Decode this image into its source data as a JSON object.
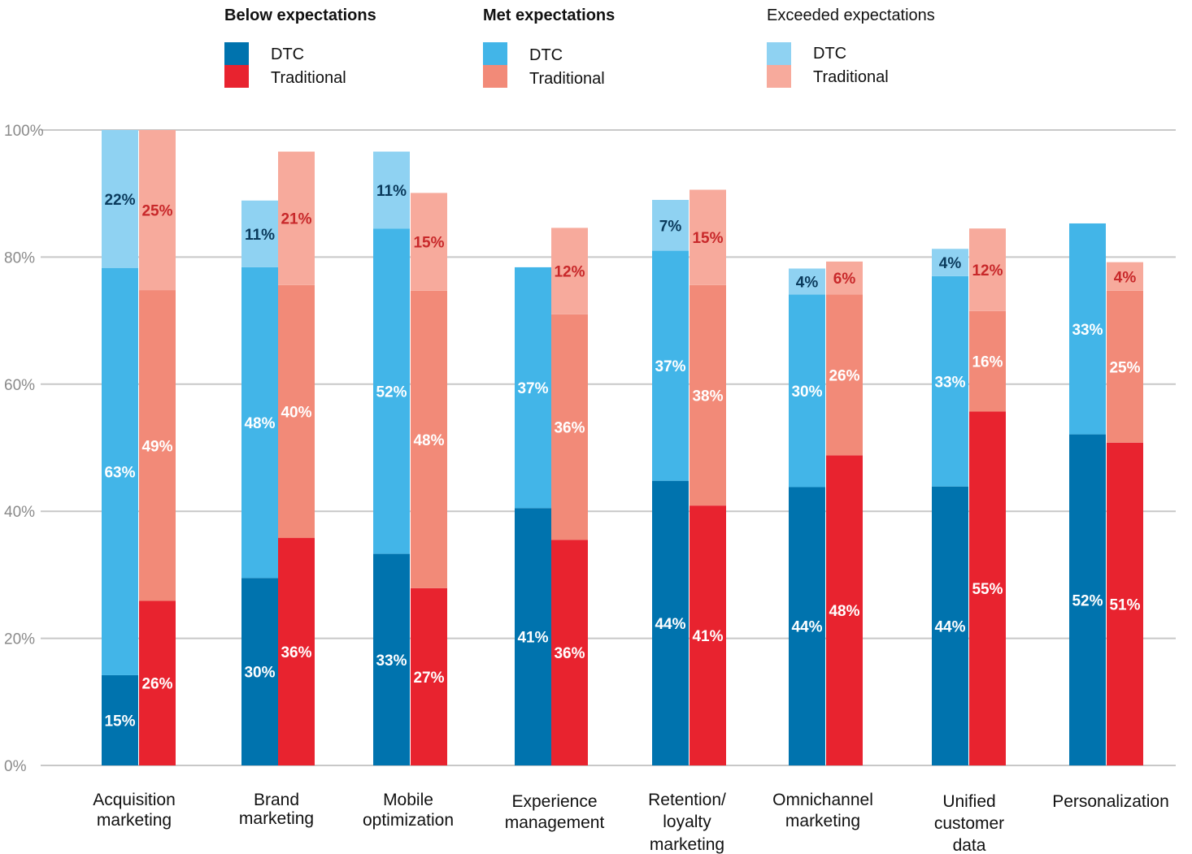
{
  "chart_data": {
    "type": "bar",
    "stacked": true,
    "grouped": true,
    "ylim": [
      0,
      100
    ],
    "yticks": [
      "0%",
      "20%",
      "40%",
      "60%",
      "80%",
      "100%"
    ],
    "ytick_values": [
      0,
      20,
      40,
      60,
      80,
      100
    ],
    "grid": true,
    "legend_position": "top",
    "categories": [
      [
        "Acquisition",
        "marketing"
      ],
      [
        "Brand",
        "marketing"
      ],
      [
        "Mobile",
        "optimization"
      ],
      [
        "Experience",
        "management"
      ],
      [
        "Retention/",
        "loyalty",
        "marketing"
      ],
      [
        "Omnichannel",
        "marketing"
      ],
      [
        "Unified",
        "customer",
        "data"
      ],
      [
        "Personalization"
      ]
    ],
    "legend": [
      {
        "title": "Below expectations",
        "bold": true,
        "items": [
          {
            "name": "DTC",
            "color": "#0073ae"
          },
          {
            "name": "Traditional",
            "color": "#e8232f"
          }
        ]
      },
      {
        "title": "Met expectations",
        "bold": true,
        "items": [
          {
            "name": "DTC",
            "color": "#42b5e8"
          },
          {
            "name": "Traditional",
            "color": "#f28a78"
          }
        ]
      },
      {
        "title": "Exceeded expectations",
        "bold": false,
        "items": [
          {
            "name": "DTC",
            "color": "#8fd2f2"
          },
          {
            "name": "Traditional",
            "color": "#f7aa9c"
          }
        ]
      }
    ],
    "series": [
      {
        "group": "DTC",
        "level": "Below expectations",
        "color": "#0073ae",
        "label_color": "#ffffff",
        "values": [
          15,
          30,
          33,
          41,
          44,
          44,
          44,
          52
        ]
      },
      {
        "group": "DTC",
        "level": "Met expectations",
        "color": "#42b5e8",
        "label_color": "#ffffff",
        "values": [
          63,
          48,
          52,
          37,
          37,
          30,
          33,
          33
        ]
      },
      {
        "group": "DTC",
        "level": "Exceeded expectations",
        "color": "#8fd2f2",
        "label_color": "#0a3a5c",
        "values": [
          22,
          11,
          11,
          null,
          7,
          4,
          4,
          null
        ]
      },
      {
        "group": "Traditional",
        "level": "Below expectations",
        "color": "#e8232f",
        "label_color": "#ffffff",
        "values": [
          26,
          36,
          27,
          36,
          41,
          48,
          55,
          51
        ]
      },
      {
        "group": "Traditional",
        "level": "Met expectations",
        "color": "#f28a78",
        "label_color": "#ffffff",
        "values": [
          49,
          40,
          48,
          36,
          38,
          26,
          16,
          25
        ]
      },
      {
        "group": "Traditional",
        "level": "Exceeded expectations",
        "color": "#f7aa9c",
        "label_color": "#c8282a",
        "values": [
          25,
          21,
          15,
          12,
          15,
          6,
          12,
          4
        ]
      }
    ],
    "segment_tops": {
      "DTC": [
        [
          14.2,
          78.3,
          100
        ],
        [
          29.5,
          78.4,
          88.9
        ],
        [
          33.3,
          84.5,
          96.6
        ],
        [
          40.5,
          78.4,
          null
        ],
        [
          44.8,
          81.0,
          89.0
        ],
        [
          43.8,
          74.1,
          78.2
        ],
        [
          43.9,
          77.0,
          81.3
        ],
        [
          52.1,
          85.3,
          null
        ]
      ],
      "Traditional": [
        [
          25.9,
          74.8,
          100
        ],
        [
          35.8,
          75.6,
          96.6
        ],
        [
          27.9,
          74.7,
          90.1
        ],
        [
          35.5,
          71.0,
          84.6
        ],
        [
          40.9,
          75.6,
          90.6
        ],
        [
          48.8,
          74.1,
          79.3
        ],
        [
          55.7,
          71.5,
          84.5
        ],
        [
          50.8,
          74.7,
          79.2
        ]
      ]
    },
    "segment_labels": {
      "DTC": [
        [
          "15%",
          "63%",
          "22%"
        ],
        [
          "30%",
          "48%",
          "11%"
        ],
        [
          "33%",
          "52%",
          "11%"
        ],
        [
          "41%",
          "37%",
          null
        ],
        [
          "44%",
          "37%",
          "7%"
        ],
        [
          "44%",
          "30%",
          "4%"
        ],
        [
          "44%",
          "33%",
          "4%"
        ],
        [
          "52%",
          "33%",
          null
        ]
      ],
      "Traditional": [
        [
          "26%",
          "49%",
          "25%"
        ],
        [
          "36%",
          "40%",
          "21%"
        ],
        [
          "27%",
          "48%",
          "15%"
        ],
        [
          "36%",
          "36%",
          "12%"
        ],
        [
          "41%",
          "38%",
          "15%"
        ],
        [
          "48%",
          "26%",
          "6%"
        ],
        [
          "55%",
          "16%",
          "12%"
        ],
        [
          "51%",
          "25%",
          "4%"
        ]
      ]
    }
  }
}
